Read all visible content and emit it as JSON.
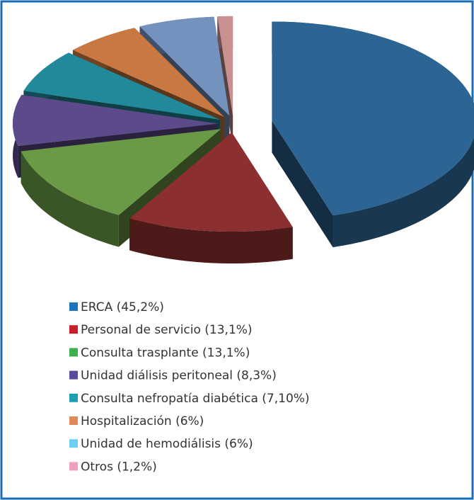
{
  "chart_data": {
    "type": "pie3d",
    "categories": [
      "ERCA (45,2%)",
      "Personal de servicio (13,1%)",
      "Consulta trasplante (13,1%)",
      "Unidad diálisis peritoneal (8,3%)",
      "Consulta nefropatía diabética (7,10%)",
      "Hospitalización (6%)",
      "Unidad de hemodiálisis (6%)",
      "Otros (1,2%)"
    ],
    "values": [
      45.2,
      13.1,
      13.1,
      8.3,
      7.1,
      6,
      6,
      1.2
    ],
    "colors": [
      "#2c6494",
      "#8c2f30",
      "#6a9a45",
      "#5c4a8a",
      "#21899a",
      "#c87840",
      "#7392bd",
      "#c89090"
    ],
    "legend_colors": [
      "#1a75bc",
      "#c8202a",
      "#3cb04a",
      "#5a4aa0",
      "#1aa0b0",
      "#e08a5a",
      "#6ccff0",
      "#f0a0c0"
    ]
  }
}
